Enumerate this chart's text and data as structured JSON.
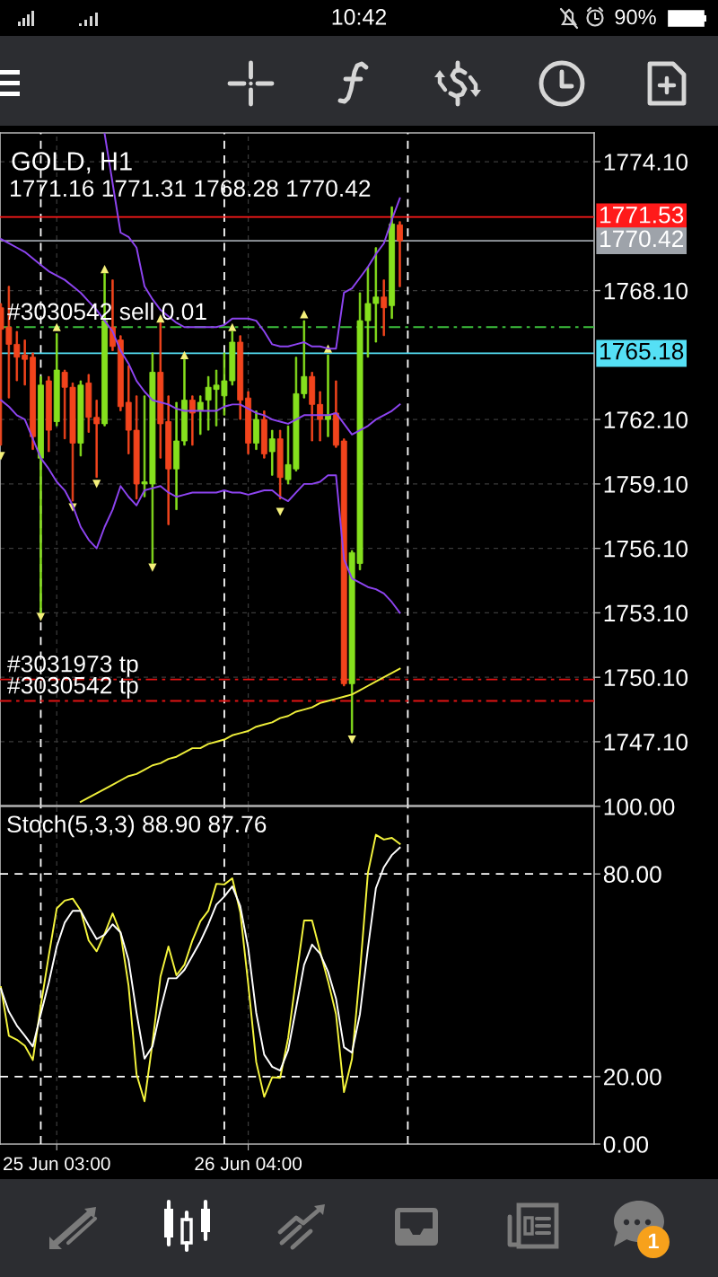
{
  "chart_data": [
    {
      "type": "candlestick",
      "title": "GOLD, H1",
      "subtitle": "1771.16 1771.31 1768.28 1770.42",
      "annotations": [
        "10:42",
        "90%",
        "1"
      ],
      "categories": [
        null,
        null,
        null,
        null,
        null,
        null,
        null,
        null,
        null,
        null,
        null,
        null,
        null,
        null,
        null,
        null,
        null,
        null,
        null,
        null,
        null,
        null,
        null,
        null,
        null,
        null,
        null,
        null,
        null,
        null,
        null,
        null,
        null,
        null,
        null,
        null,
        null,
        null,
        null,
        null,
        null,
        null,
        null,
        null,
        null,
        null,
        null,
        null,
        null,
        null,
        null
      ],
      "ohlc": [
        [
          1767.3,
          1767.5,
          1760.9,
          1766.3
        ],
        [
          1766.4,
          1768.3,
          1763.1,
          1765.6
        ],
        [
          1765.6,
          1766.2,
          1763.9,
          1765.0
        ],
        [
          1765.1,
          1765.8,
          1763.7,
          1764.9
        ],
        [
          1765.0,
          1765.2,
          1760.7,
          1761.3
        ],
        [
          1760.3,
          1764.1,
          1753.1,
          1763.7
        ],
        [
          1763.9,
          1764.1,
          1760.6,
          1761.6
        ],
        [
          1762.0,
          1766.1,
          1761.8,
          1764.4
        ],
        [
          1764.3,
          1764.4,
          1761.2,
          1763.6
        ],
        [
          1763.6,
          1763.8,
          1758.3,
          1761.0
        ],
        [
          1761.0,
          1763.9,
          1760.4,
          1763.7
        ],
        [
          1763.8,
          1764.2,
          1761.5,
          1762.2
        ],
        [
          1762.2,
          1763.0,
          1759.4,
          1761.9
        ],
        [
          1761.9,
          1768.9,
          1761.8,
          1766.7
        ],
        [
          1766.4,
          1768.6,
          1765.3,
          1765.5
        ],
        [
          1765.8,
          1766.0,
          1762.5,
          1762.7
        ],
        [
          1762.9,
          1764.6,
          1760.5,
          1761.6
        ],
        [
          1761.6,
          1763.2,
          1758.4,
          1759.1
        ],
        [
          1759.1,
          1763.2,
          1758.5,
          1759.2
        ],
        [
          1759.1,
          1765.2,
          1755.4,
          1764.3
        ],
        [
          1764.3,
          1766.6,
          1760.3,
          1761.9
        ],
        [
          1762.0,
          1763.2,
          1757.2,
          1759.8
        ],
        [
          1759.8,
          1762.9,
          1757.9,
          1761.1
        ],
        [
          1761.1,
          1764.9,
          1760.9,
          1763.0
        ],
        [
          1763.0,
          1763.2,
          1760.9,
          1762.4
        ],
        [
          1762.5,
          1763.2,
          1761.4,
          1762.9
        ],
        [
          1763.0,
          1764.1,
          1761.6,
          1763.6
        ],
        [
          1763.5,
          1764.4,
          1761.8,
          1763.7
        ],
        [
          1763.2,
          1765.2,
          1762.3,
          1763.9
        ],
        [
          1763.9,
          1766.2,
          1763.7,
          1765.7
        ],
        [
          1765.7,
          1766.0,
          1762.1,
          1763.0
        ],
        [
          1763.1,
          1763.4,
          1760.5,
          1761.0
        ],
        [
          1761.0,
          1762.5,
          1760.7,
          1762.1
        ],
        [
          1762.1,
          1762.5,
          1760.3,
          1760.5
        ],
        [
          1760.6,
          1761.6,
          1759.5,
          1761.2
        ],
        [
          1761.2,
          1761.6,
          1758.4,
          1759.4
        ],
        [
          1759.3,
          1761.8,
          1759.1,
          1760.0
        ],
        [
          1759.8,
          1765.0,
          1759.7,
          1763.3
        ],
        [
          1763.3,
          1766.7,
          1763.1,
          1764.1
        ],
        [
          1764.1,
          1764.3,
          1761.1,
          1762.8
        ],
        [
          1762.8,
          1763.4,
          1761.1,
          1762.1
        ],
        [
          1762.1,
          1765.1,
          1761.3,
          1762.3
        ],
        [
          1762.4,
          1763.9,
          1760.8,
          1760.9
        ],
        [
          1761.1,
          1761.2,
          1749.7,
          1749.8
        ],
        [
          1749.8,
          1756.0,
          1747.5,
          1755.9
        ],
        [
          1755.4,
          1768.0,
          1755.1,
          1766.7
        ],
        [
          1766.7,
          1769.2,
          1765.0,
          1767.5
        ],
        [
          1767.5,
          1770.1,
          1765.7,
          1767.8
        ],
        [
          1767.8,
          1768.6,
          1766.0,
          1767.3
        ],
        [
          1767.4,
          1772.0,
          1766.8,
          1771.2
        ],
        [
          1771.16,
          1771.31,
          1768.28,
          1770.42
        ]
      ],
      "colors": [
        "#f2441d",
        "#f2441d",
        "#f2441d",
        "#f2441d",
        "#f2441d",
        "#86e01e",
        "#f2441d",
        "#86e01e",
        "#f2441d",
        "#f2441d",
        "#86e01e",
        "#f2441d",
        "#f2441d",
        "#86e01e",
        "#f2441d",
        "#f2441d",
        "#f2441d",
        "#f2441d",
        "#86e01e",
        "#86e01e",
        "#f2441d",
        "#f2441d",
        "#86e01e",
        "#86e01e",
        "#f2441d",
        "#86e01e",
        "#86e01e",
        "#86e01e",
        "#86e01e",
        "#86e01e",
        "#f2441d",
        "#f2441d",
        "#86e01e",
        "#f2441d",
        "#86e01e",
        "#f2441d",
        "#86e01e",
        "#86e01e",
        "#86e01e",
        "#f2441d",
        "#f2441d",
        "#86e01e",
        "#f2441d",
        "#f2441d",
        "#86e01e",
        "#86e01e",
        "#86e01e",
        "#86e01e",
        "#f2441d",
        "#86e01e",
        "#f2441d"
      ],
      "series": [
        {
          "type": "line",
          "color": "#8d44f0",
          "values": [
            null,
            null,
            null,
            null,
            null,
            null,
            null,
            null,
            null,
            null,
            null,
            null,
            null,
            1775.4,
            1773.1,
            1770.8,
            1770.6,
            1770.1,
            1768.3,
            1767.7,
            1767.2,
            1766.9,
            1766.6,
            1766.4,
            1766.4,
            1766.4,
            1766.4,
            1766.4,
            1766.5,
            1766.8,
            1766.8,
            1766.8,
            1766.7,
            1766.2,
            1765.6,
            1765.5,
            1765.5,
            1765.6,
            1765.7,
            1765.5,
            1765.5,
            1765.4,
            1765.4,
            1768.0,
            1768.2,
            1768.7,
            1769.2,
            1769.8,
            1770.3,
            1771.4,
            1772.4
          ]
        },
        {
          "type": "line",
          "color": "#8d44f0",
          "values": [
            1770.5,
            1770.3,
            1770.1,
            1769.9,
            1769.6,
            1769.3,
            1769.0,
            1768.8,
            1768.6,
            1768.3,
            1768.0,
            1767.6,
            1767.2,
            1766.7,
            1766.2,
            1765.3,
            1764.7,
            1763.9,
            1763.4,
            1763.0,
            1762.9,
            1762.8,
            1762.6,
            1762.5,
            1762.5,
            1762.5,
            1762.5,
            1762.5,
            1762.7,
            1762.8,
            1762.8,
            1762.6,
            1762.4,
            1762.3,
            1762.1,
            1762.0,
            1761.9,
            1762.1,
            1762.3,
            1762.3,
            1762.3,
            1762.3,
            1762.4,
            1761.9,
            1761.4,
            1761.6,
            1761.8,
            1762.1,
            1762.3,
            1762.5,
            1762.8
          ]
        },
        {
          "type": "line",
          "color": "#8d44f0",
          "values": [
            1763.0,
            1762.7,
            1762.3,
            1762.1,
            1761.2,
            1760.3,
            1759.8,
            1759.2,
            1758.8,
            1758.1,
            1757.1,
            1756.5,
            1756.1,
            1757.1,
            1757.9,
            1759.0,
            1758.5,
            1758.1,
            1758.8,
            1758.9,
            1759.0,
            1758.7,
            1758.5,
            1758.6,
            1758.7,
            1758.7,
            1758.7,
            1758.7,
            1758.8,
            1758.7,
            1758.7,
            1758.6,
            1758.7,
            1758.8,
            1758.8,
            1758.5,
            1758.3,
            1758.7,
            1759.1,
            1759.1,
            1759.2,
            1759.5,
            1759.5,
            1755.6,
            1754.7,
            1754.5,
            1754.3,
            1754.2,
            1754.0,
            1753.6,
            1753.1
          ]
        },
        {
          "type": "line",
          "color": "#eeee3a",
          "values": [
            null,
            null,
            null,
            null,
            null,
            null,
            null,
            null,
            null,
            null,
            1744.3,
            1744.5,
            1744.7,
            1744.9,
            1745.1,
            1745.3,
            1745.5,
            1745.6,
            1745.8,
            1746.0,
            1746.1,
            1746.3,
            1746.4,
            1746.6,
            1746.8,
            1746.8,
            1747.0,
            1747.1,
            1747.2,
            1747.4,
            1747.5,
            1747.6,
            1747.8,
            1747.9,
            1748.0,
            1748.2,
            1748.3,
            1748.5,
            1748.6,
            1748.7,
            1748.9,
            1749.0,
            1749.1,
            1749.2,
            1749.3,
            1749.5,
            1749.7,
            1749.9,
            1750.1,
            1750.3,
            1750.5
          ]
        },
        {
          "type": "scatter",
          "color": "#f4f07a",
          "marker": "triangle",
          "values": [
            null,
            null,
            null,
            null,
            null,
            null,
            null,
            1766.4,
            null,
            null,
            null,
            null,
            null,
            1769.1,
            null,
            null,
            null,
            null,
            null,
            null,
            1766.8,
            null,
            null,
            1765.1,
            null,
            null,
            null,
            null,
            null,
            1766.4,
            null,
            null,
            null,
            null,
            null,
            null,
            null,
            null,
            1767.0,
            null,
            null,
            1765.4,
            null,
            null,
            null,
            null,
            null,
            null,
            null,
            null,
            null
          ]
        },
        {
          "type": "scatter",
          "color": "#f4f07a",
          "marker": "triangle",
          "values": [
            1760.4,
            null,
            null,
            null,
            null,
            1752.9,
            null,
            null,
            null,
            1758.0,
            null,
            null,
            1759.1,
            null,
            null,
            null,
            null,
            null,
            null,
            1755.2,
            null,
            null,
            null,
            null,
            null,
            null,
            null,
            null,
            null,
            null,
            null,
            null,
            null,
            null,
            null,
            1757.8,
            null,
            null,
            null,
            null,
            null,
            null,
            null,
            null,
            1747.2,
            null,
            null,
            null,
            null,
            null,
            null
          ]
        }
      ],
      "ylim": [
        1744.13,
        1775.44
      ],
      "yticks": [
        {
          "value": 1774.1,
          "label": "1774.10"
        },
        {
          "value": 1768.1,
          "label": "1768.10"
        },
        {
          "value": 1762.1,
          "label": "1762.10"
        },
        {
          "value": 1759.1,
          "label": "1759.10"
        },
        {
          "value": 1756.1,
          "label": "1756.10"
        },
        {
          "value": 1753.1,
          "label": "1753.10"
        },
        {
          "value": 1750.1,
          "label": "1750.10"
        },
        {
          "value": 1747.1,
          "label": "1747.10"
        }
      ],
      "ref_lines": [
        {
          "axis": "y",
          "value": 1771.53,
          "label": "1771.53",
          "color": "#ff1a1a",
          "line_style": "solid"
        },
        {
          "axis": "y",
          "value": 1770.42,
          "label": "1770.42",
          "color": "#9ea3aa",
          "line_style": "solid"
        },
        {
          "axis": "y",
          "value": 1766.4,
          "label": "#3030542 sell 0.01",
          "color": "#3cbf3c",
          "line_style": "dashdot"
        },
        {
          "axis": "y",
          "value": 1765.18,
          "label": "1765.18",
          "color": "#55e0f5",
          "line_style": "solid"
        },
        {
          "axis": "y",
          "value": 1750.0,
          "label": "#3031973 tp",
          "color": "#e01414",
          "line_style": "dashdot"
        },
        {
          "axis": "y",
          "value": 1749.0,
          "label": "#3030542 tp",
          "color": "#e01414",
          "line_style": "dashdot"
        }
      ],
      "grid": true,
      "tick_labels": "y"
    },
    {
      "type": "line",
      "title": "Stoch(5,3,3) 88.90 87.76",
      "categories": [
        null,
        null,
        null,
        null,
        null,
        null,
        null,
        "25 Jun 03:00",
        null,
        null,
        null,
        null,
        null,
        null,
        null,
        null,
        null,
        null,
        null,
        null,
        null,
        null,
        null,
        null,
        null,
        null,
        null,
        null,
        null,
        null,
        null,
        "26 Jun 04:00",
        null,
        null,
        null,
        null,
        null,
        null,
        null,
        null,
        null,
        null,
        null,
        null,
        null,
        null,
        null,
        null,
        null,
        null,
        null
      ],
      "series": [
        {
          "color": "#f5f53d",
          "values": [
            46.5,
            32.1,
            30.9,
            29.1,
            24.9,
            41.0,
            55.8,
            69.8,
            72.1,
            72.7,
            69.2,
            60.3,
            57.1,
            62.3,
            68.3,
            62.5,
            46.9,
            20.7,
            12.7,
            30.0,
            49.6,
            58.5,
            50.0,
            53.1,
            60.3,
            66.0,
            69.1,
            77.1,
            76.9,
            78.7,
            68.7,
            47.4,
            24.3,
            14.0,
            19.8,
            19.6,
            31.4,
            49.2,
            66.2,
            66.2,
            57.1,
            48.3,
            38.5,
            15.4,
            25.2,
            50.9,
            80.3,
            91.6,
            90.2,
            90.7,
            88.9
          ]
        },
        {
          "color": "#ffffff",
          "values": [
            46.0,
            39.2,
            35.1,
            32.1,
            28.9,
            38.5,
            47.8,
            58.5,
            65.6,
            69.1,
            69.1,
            64.7,
            60.7,
            62.0,
            65.1,
            62.7,
            54.5,
            38.9,
            25.3,
            28.9,
            39.8,
            49.1,
            49.1,
            51.6,
            55.8,
            60.0,
            65.1,
            70.9,
            73.3,
            76.3,
            70.5,
            58.0,
            38.9,
            26.5,
            22.9,
            21.8,
            27.8,
            40.3,
            53.1,
            59.1,
            56.4,
            51.1,
            43.1,
            28.7,
            27.1,
            38.5,
            58.0,
            75.8,
            82.0,
            85.6,
            87.8
          ]
        }
      ],
      "ylim": [
        0,
        100
      ],
      "yticks": [
        {
          "value": 100,
          "label": "100.00"
        },
        {
          "value": 80,
          "label": "80.00"
        },
        {
          "value": 20,
          "label": "20.00"
        },
        {
          "value": 0,
          "label": "0.00"
        }
      ],
      "ref_lines": [
        {
          "axis": "y",
          "value": 80,
          "color": "#ffffff",
          "line_style": "dashed"
        },
        {
          "axis": "y",
          "value": 20,
          "color": "#ffffff",
          "line_style": "dashed"
        }
      ],
      "grid": "x"
    }
  ]
}
